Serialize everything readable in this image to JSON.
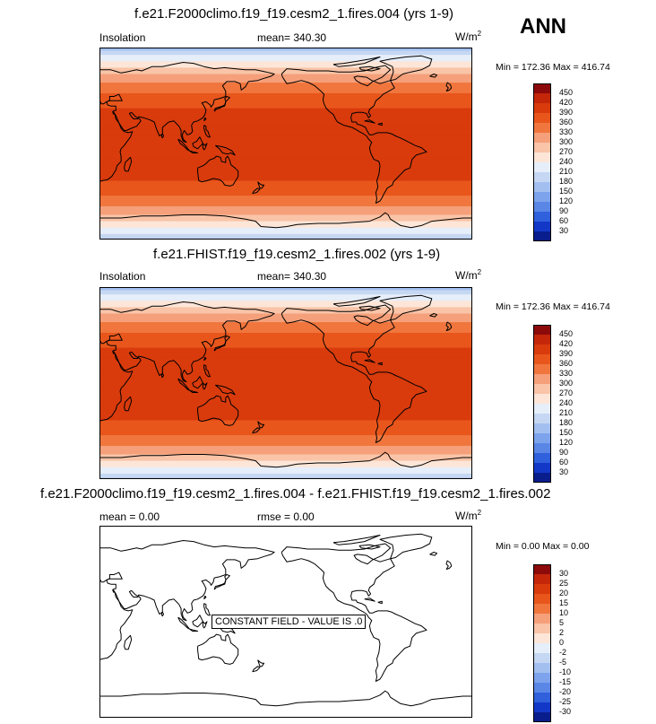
{
  "season": "ANN",
  "units": "W/m",
  "units_sup": "2",
  "panels": [
    {
      "title": "f.e21.F2000climo.f19_f19.cesm2_1.fires.004 (yrs 1-9)",
      "left_label": "Insolation",
      "center_label": "mean= 340.30",
      "minmax": "Min = 172.36 Max = 416.74",
      "levels": [
        "450",
        "420",
        "390",
        "360",
        "330",
        "300",
        "270",
        "240",
        "210",
        "180",
        "150",
        "120",
        "90",
        "60",
        "30"
      ],
      "field": "insolation"
    },
    {
      "title": "f.e21.FHIST.f19_f19.cesm2_1.fires.002 (yrs 1-9)",
      "left_label": "Insolation",
      "center_label": "mean= 340.30",
      "minmax": "Min = 172.36 Max = 416.74",
      "levels": [
        "450",
        "420",
        "390",
        "360",
        "330",
        "300",
        "270",
        "240",
        "210",
        "180",
        "150",
        "120",
        "90",
        "60",
        "30"
      ],
      "field": "insolation"
    },
    {
      "title": "f.e21.F2000climo.f19_f19.cesm2_1.fires.004 - f.e21.FHIST.f19_f19.cesm2_1.fires.002",
      "left_label": "mean =   0.00",
      "center_label": "rmse =   0.00",
      "minmax": "Min =  0.00 Max =  0.00",
      "levels": [
        "30",
        "25",
        "20",
        "15",
        "10",
        "5",
        "2",
        "0",
        "-2",
        "-5",
        "-10",
        "-15",
        "-20",
        "-25",
        "-30"
      ],
      "field": "difference",
      "constant_label": "CONSTANT FIELD - VALUE IS .0"
    }
  ],
  "colors": {
    "abs_palette": [
      "#8c0a0a",
      "#c4260a",
      "#d93b0c",
      "#e8561c",
      "#f0763e",
      "#f5a07a",
      "#f9c4a8",
      "#fde6d8",
      "#e6eefa",
      "#c5d7f2",
      "#a2bff0",
      "#7da3ec",
      "#5a86e6",
      "#3060dc",
      "#1338c8",
      "#0a1d8c"
    ],
    "diff_palette": [
      "#8c0a0a",
      "#c4260a",
      "#d93b0c",
      "#e8561c",
      "#f0763e",
      "#f5a07a",
      "#f9c4a8",
      "#fde6d8",
      "#e6eefa",
      "#c5d7f2",
      "#a2bff0",
      "#7da3ec",
      "#5a86e6",
      "#3060dc",
      "#1338c8",
      "#0a1d8c"
    ]
  }
}
